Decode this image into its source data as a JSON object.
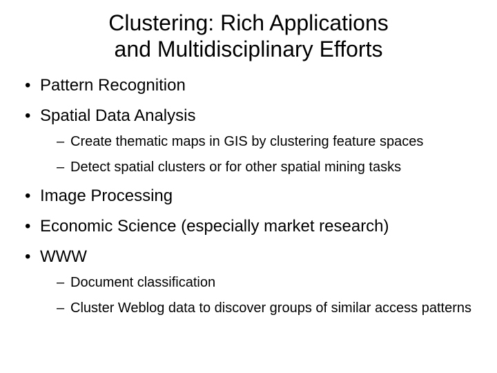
{
  "title_line1": "Clustering: Rich Applications",
  "title_line2": "and Multidisciplinary Efforts",
  "bullets": {
    "b0": {
      "text": "Pattern Recognition"
    },
    "b1": {
      "text": "Spatial Data Analysis",
      "sub": {
        "s0": "Create thematic maps in GIS by clustering feature spaces",
        "s1": "Detect spatial clusters or for other spatial mining tasks"
      }
    },
    "b2": {
      "text": "Image Processing"
    },
    "b3": {
      "text": "Economic Science (especially market research)"
    },
    "b4": {
      "text": "WWW",
      "sub": {
        "s0": "Document classification",
        "s1": "Cluster Weblog data to discover groups of similar access patterns"
      }
    }
  },
  "style": {
    "background_color": "#ffffff",
    "text_color": "#000000",
    "font_family": "Arial",
    "title_fontsize_pt": 32,
    "lvl1_fontsize_pt": 24,
    "lvl2_fontsize_pt": 20
  }
}
